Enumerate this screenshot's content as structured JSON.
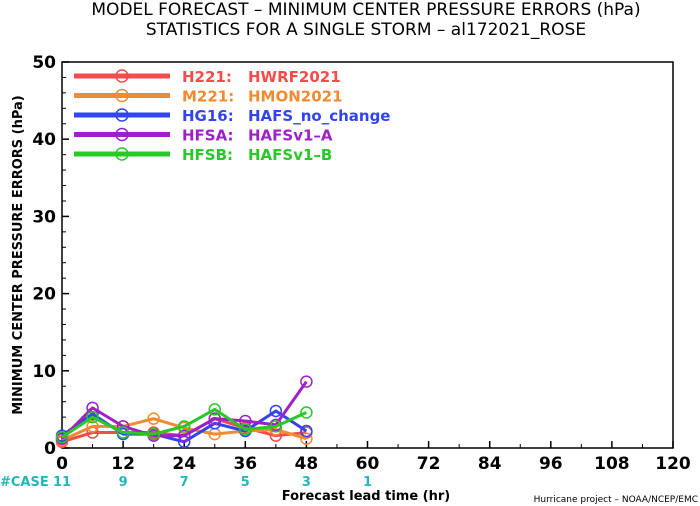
{
  "chart_data": {
    "type": "line",
    "title": "MODEL FORECAST – MINIMUM CENTER PRESSURE ERRORS (hPa)",
    "subtitle": "STATISTICS FOR A SINGLE STORM – al172021_ROSE",
    "xlabel": "Forecast lead time (hr)",
    "ylabel": "MINIMUM CENTER PRESSURE ERRORS (hPa)",
    "xlim": [
      0,
      120
    ],
    "ylim": [
      0,
      50
    ],
    "x_ticks": [
      0,
      12,
      24,
      36,
      48,
      60,
      72,
      84,
      96,
      108,
      120
    ],
    "y_ticks": [
      0,
      10,
      20,
      30,
      40,
      50
    ],
    "x_tick_labels": [
      "0",
      "12",
      "24",
      "36",
      "48",
      "60",
      "72",
      "84",
      "96",
      "108",
      "120"
    ],
    "y_tick_labels": [
      "0",
      "10",
      "20",
      "30",
      "40",
      "50"
    ],
    "grid": false,
    "legend_position": "top-left",
    "case_label": "#CASE",
    "case_counts": [
      {
        "x": 0,
        "label": "11"
      },
      {
        "x": 12,
        "label": "9"
      },
      {
        "x": 24,
        "label": "7"
      },
      {
        "x": 36,
        "label": "5"
      },
      {
        "x": 48,
        "label": "3"
      },
      {
        "x": 60,
        "label": "1"
      }
    ],
    "x": [
      0,
      6,
      12,
      18,
      24,
      30,
      36,
      42,
      48
    ],
    "series": [
      {
        "code": "H221:",
        "name": "HWRF2021",
        "color": "#f54b4b",
        "values": [
          0.8,
          2.0,
          2.0,
          2.0,
          1.6,
          3.8,
          2.6,
          1.6,
          2.0
        ]
      },
      {
        "code": "M221:",
        "name": "HMON2021",
        "color": "#f28a30",
        "values": [
          1.0,
          2.8,
          2.8,
          3.8,
          2.6,
          1.8,
          2.2,
          2.4,
          1.2
        ]
      },
      {
        "code": "HG16:",
        "name": "HAFS_no_change",
        "color": "#3045f0",
        "values": [
          1.6,
          4.4,
          1.8,
          1.8,
          0.8,
          3.2,
          2.2,
          4.8,
          2.2
        ]
      },
      {
        "code": "HFSA:",
        "name": "HAFSv1–A",
        "color": "#a020c8",
        "values": [
          1.2,
          5.2,
          2.8,
          1.6,
          1.6,
          3.8,
          3.5,
          3.0,
          8.6
        ]
      },
      {
        "code": "HFSB:",
        "name": "HAFSv1–B",
        "color": "#28c828",
        "values": [
          1.4,
          4.0,
          2.0,
          1.8,
          2.8,
          5.0,
          2.4,
          2.8,
          4.6
        ]
      }
    ]
  },
  "credit": "Hurricane project – NOAA/NCEP/EMC"
}
